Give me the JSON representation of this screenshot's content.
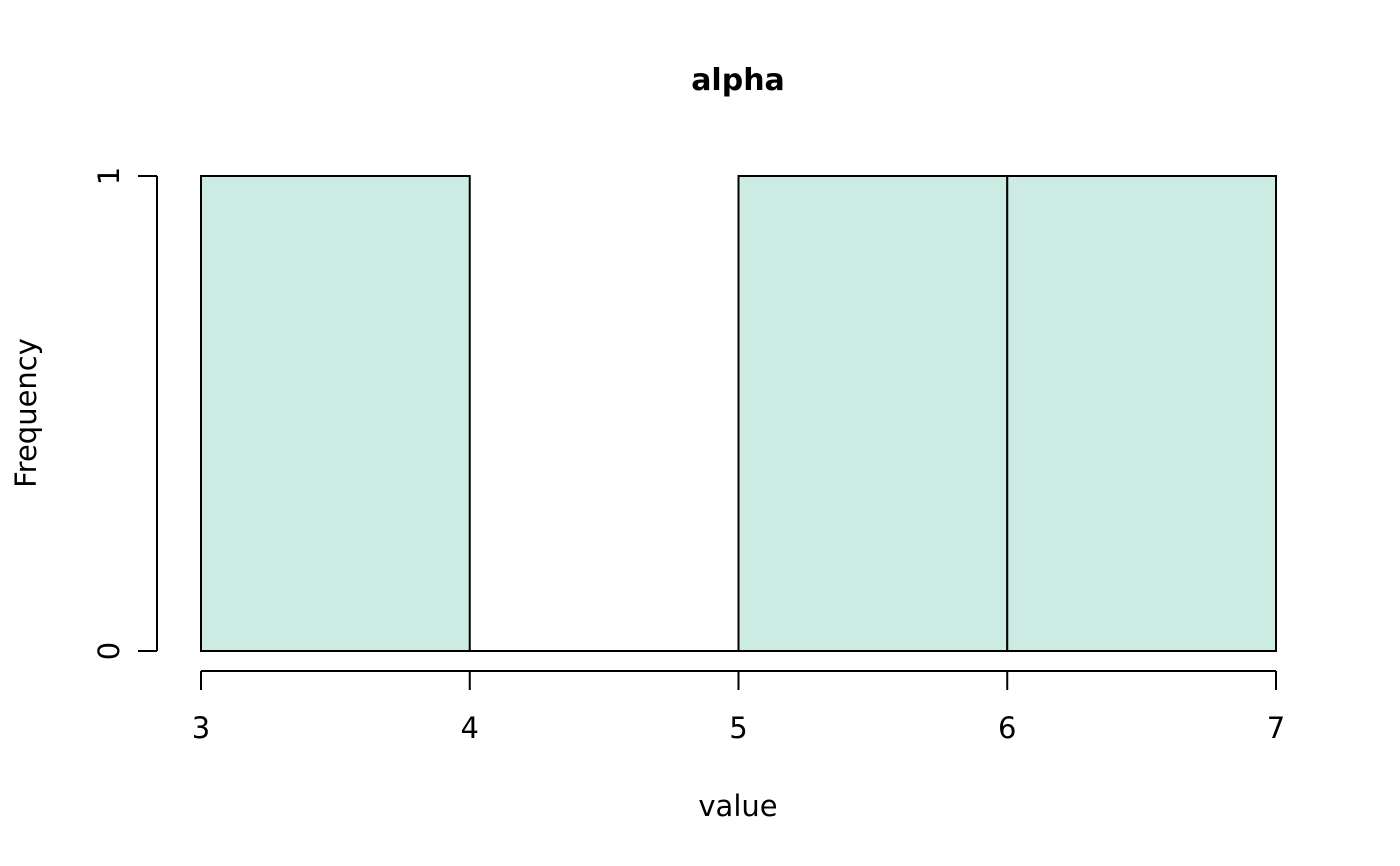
{
  "chart_data": {
    "type": "bar",
    "title": "alpha",
    "xlabel": "value",
    "ylabel": "Frequency",
    "bin_edges": [
      3,
      4,
      5,
      6,
      7
    ],
    "values": [
      1,
      0,
      1,
      1
    ],
    "xlim": [
      3,
      7
    ],
    "ylim": [
      0,
      1
    ],
    "x_ticks": [
      3,
      4,
      5,
      6,
      7
    ],
    "y_ticks": [
      0,
      1
    ],
    "grid": false,
    "legend": "none",
    "bar_color": "#CCEBE2",
    "edge_color": "#000000"
  }
}
